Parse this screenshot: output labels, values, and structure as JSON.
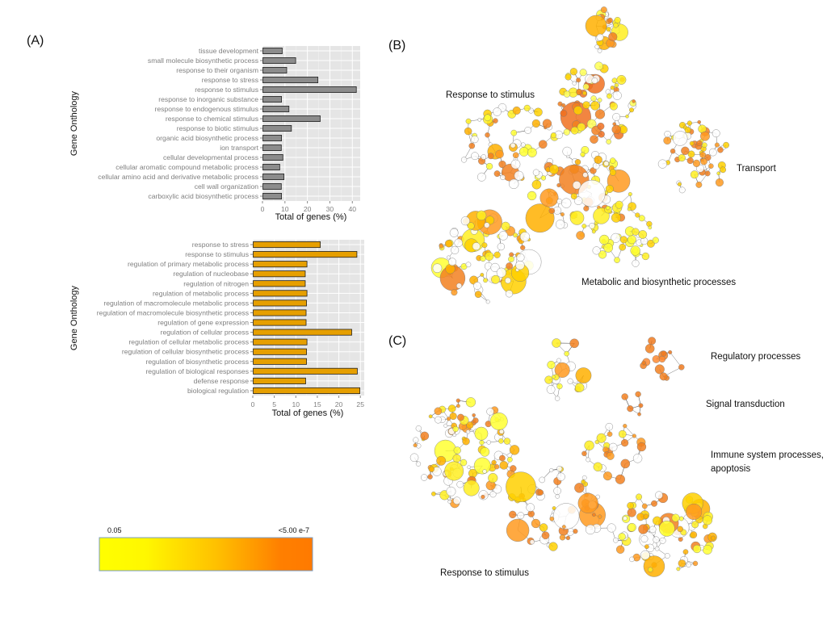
{
  "figure": {
    "panel_a_label": "(A)",
    "panel_b_label": "(B)",
    "panel_c_label": "(C)"
  },
  "chart_data": [
    {
      "type": "bar",
      "orientation": "horizontal",
      "xlabel": "Total of genes (%)",
      "ylabel": "Gene Onthology",
      "xlim": [
        0,
        43.5
      ],
      "xticks": [
        0,
        10,
        20,
        30,
        40
      ],
      "grid": true,
      "bar_color": "#8c8c8c",
      "categories": [
        "tissue development",
        "small molecule biosynthetic process",
        "response to their organism",
        "response to stress",
        "response to stimulus",
        "response to inorganic substance",
        "response to endogenous stimulus",
        "response to chemical stimulus",
        "response to biotic stimulus",
        "organic acid biosynthetic process",
        "ion transport",
        "cellular developmental process",
        "cellular aromatic compound metabolic process",
        "cellular amino acid and derivative metabolic process",
        "cell wall organization",
        "carboxylic acid biosynthetic process"
      ],
      "values": [
        8.6,
        14.6,
        10.6,
        24.5,
        41.6,
        8.3,
        11.6,
        25.5,
        12.7,
        8.3,
        8.2,
        8.9,
        7.5,
        9.4,
        8.2,
        8.3
      ]
    },
    {
      "type": "bar",
      "orientation": "horizontal",
      "xlabel": "Total of genes (%)",
      "ylabel": "Gene Onthology",
      "xlim": [
        0,
        25.9
      ],
      "xticks": [
        0,
        5,
        10,
        15,
        20,
        25
      ],
      "grid": true,
      "bar_color": "#e69f00",
      "categories": [
        "response to stress",
        "response to stimulus",
        "regulation of primary metabolic process",
        "regulation of nucleobase",
        "regulation of nitrogen",
        "regulation of metabolic process",
        "regulation of macromolecule metabolic process",
        "regulation of macromolecule biosynthetic process",
        "regulation of gene expression",
        "regulation of cellular process",
        "regulation of cellular metabolic process",
        "regulation of cellular biosynthetic process",
        "regulation of biosynthetic process",
        "regulation of biological responses",
        "defense response",
        "biological regulation"
      ],
      "values": [
        15.6,
        24.1,
        12.5,
        12.1,
        12.1,
        12.5,
        12.4,
        12.3,
        12.3,
        22.9,
        12.5,
        12.4,
        12.4,
        24.2,
        12.2,
        24.8
      ]
    }
  ],
  "legend": {
    "min_label": "0.05",
    "max_label": "<5.00 e-7",
    "color_low": "#ffff00",
    "color_high": "#ff7f00"
  },
  "network_b": {
    "labels": [
      "Response to stimulus",
      "Transport",
      "Metabolic and biosynthetic processes"
    ]
  },
  "network_c": {
    "labels": [
      "Regulatory processes",
      "Signal transduction",
      "Immune system processes,",
      "apoptosis",
      "Response to stimulus"
    ]
  }
}
